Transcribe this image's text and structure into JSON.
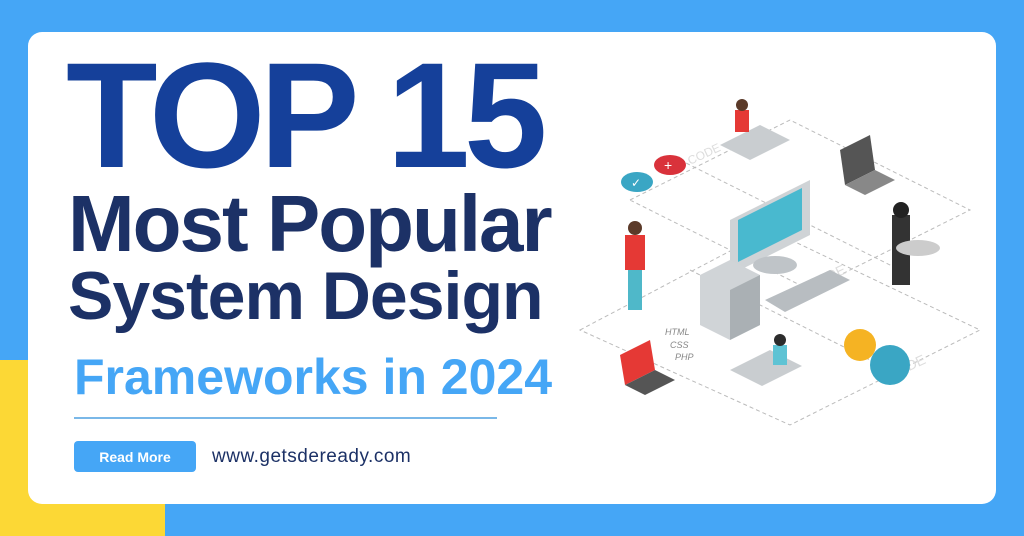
{
  "headline": {
    "line1": "TOP 15",
    "line2": "Most Popular",
    "line3": "System Design",
    "line4": "Frameworks in 2024"
  },
  "cta": {
    "read_more_label": "Read More"
  },
  "website": "www.getsdeready.com",
  "illustration": {
    "labels": [
      "HTML",
      "CSS",
      "PHP",
      "CODE"
    ]
  },
  "colors": {
    "background": "#45a6f6",
    "accent_yellow": "#fcd835",
    "title_dark": "#15409a",
    "title_navy": "#1c3166",
    "title_light": "#45a6f6"
  }
}
